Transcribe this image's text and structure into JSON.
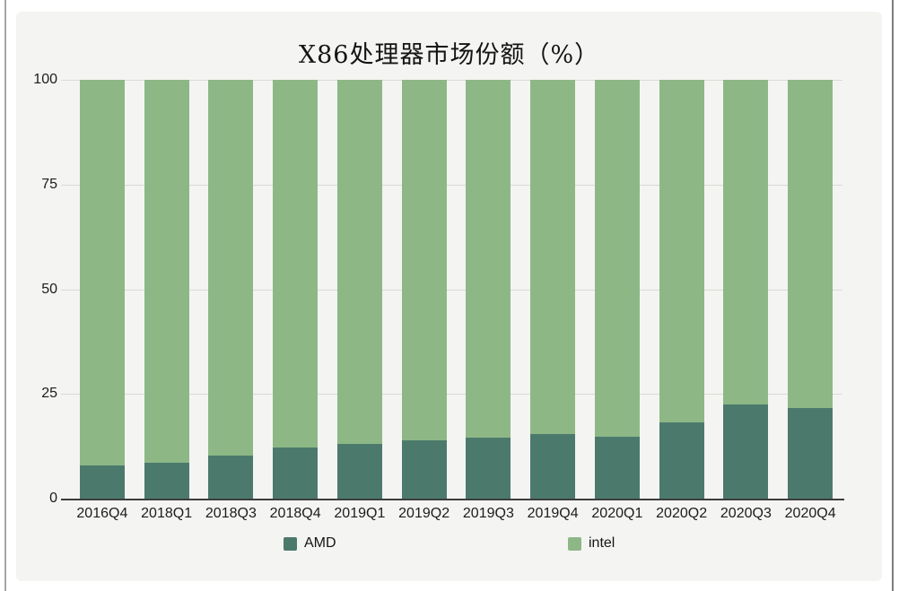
{
  "chart_data": {
    "type": "bar",
    "stacked": true,
    "title": "X86处理器市场份额（%）",
    "categories": [
      "2016Q4",
      "2018Q1",
      "2018Q3",
      "2018Q4",
      "2019Q1",
      "2019Q2",
      "2019Q3",
      "2019Q4",
      "2020Q1",
      "2020Q2",
      "2020Q3",
      "2020Q4"
    ],
    "series": [
      {
        "name": "AMD",
        "color": "#4b7a6d",
        "values": [
          8,
          8.5,
          10.3,
          12.2,
          13.1,
          13.9,
          14.5,
          15.5,
          14.7,
          18.3,
          22.4,
          21.7
        ]
      },
      {
        "name": "intel",
        "color": "#8db886",
        "values": [
          92,
          91.5,
          89.7,
          87.8,
          86.9,
          86.1,
          85.5,
          84.5,
          85.3,
          81.7,
          77.6,
          78.3
        ]
      }
    ],
    "y_axis": {
      "min": 0,
      "max": 100,
      "ticks": [
        0,
        25,
        50,
        75,
        100
      ]
    },
    "xlabel": "",
    "ylabel": "",
    "grid": true,
    "legend_position": "bottom",
    "colors": {
      "background": "#f4f4f2",
      "gridline": "#d9d9d6",
      "axis_line": "#3d3d3d",
      "text": "#1c1c1c"
    }
  }
}
